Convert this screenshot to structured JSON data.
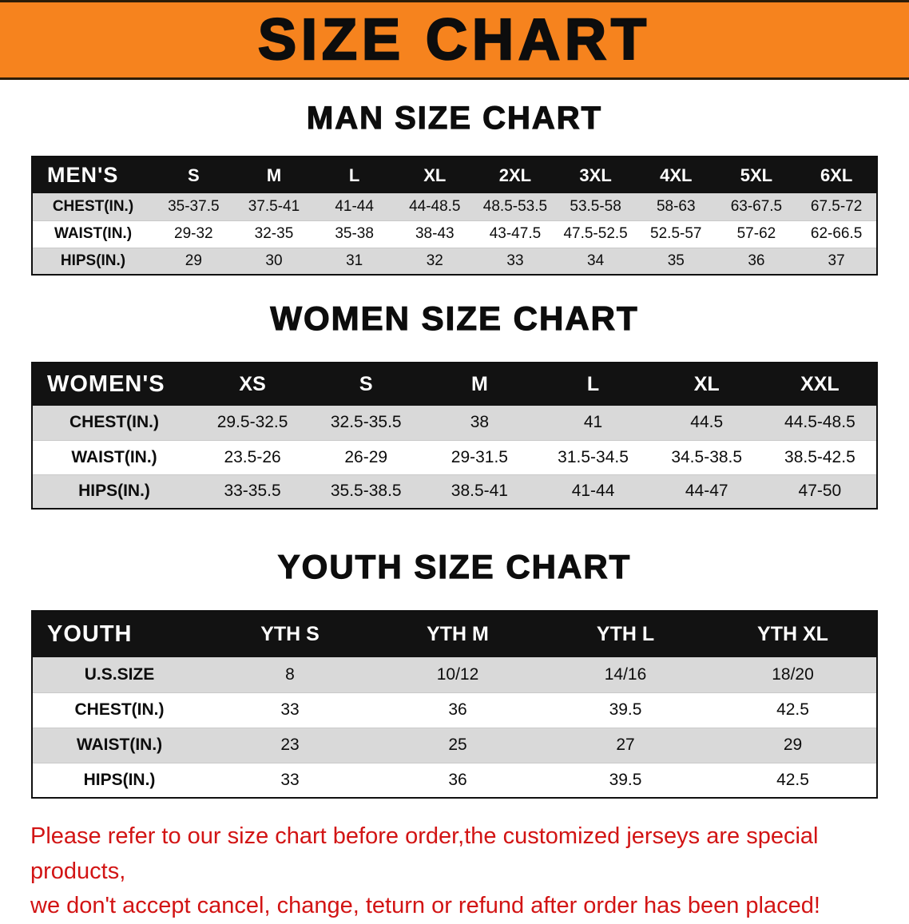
{
  "banner": {
    "title": "SIZE CHART"
  },
  "colors": {
    "banner_bg": "#f6831e",
    "table_header_bg": "#121212",
    "row_stripe": "#d9d9d9",
    "disclaimer_red": "#d21414",
    "text_black": "#0d0d0d"
  },
  "sections": [
    {
      "heading": "MAN SIZE CHART",
      "header_label": "MEN'S",
      "columns": [
        "S",
        "M",
        "L",
        "XL",
        "2XL",
        "3XL",
        "4XL",
        "5XL",
        "6XL"
      ],
      "rows": [
        {
          "label": "CHEST(IN.)",
          "values": [
            "35-37.5",
            "37.5-41",
            "41-44",
            "44-48.5",
            "48.5-53.5",
            "53.5-58",
            "58-63",
            "63-67.5",
            "67.5-72"
          ]
        },
        {
          "label": "WAIST(IN.)",
          "values": [
            "29-32",
            "32-35",
            "35-38",
            "38-43",
            "43-47.5",
            "47.5-52.5",
            "52.5-57",
            "57-62",
            "62-66.5"
          ]
        },
        {
          "label": "HIPS(IN.)",
          "values": [
            "29",
            "30",
            "31",
            "32",
            "33",
            "34",
            "35",
            "36",
            "37"
          ]
        }
      ]
    },
    {
      "heading": "WOMEN SIZE CHART",
      "header_label": "WOMEN'S",
      "columns": [
        "XS",
        "S",
        "M",
        "L",
        "XL",
        "XXL"
      ],
      "rows": [
        {
          "label": "CHEST(IN.)",
          "values": [
            "29.5-32.5",
            "32.5-35.5",
            "38",
            "41",
            "44.5",
            "44.5-48.5"
          ]
        },
        {
          "label": "WAIST(IN.)",
          "values": [
            "23.5-26",
            "26-29",
            "29-31.5",
            "31.5-34.5",
            "34.5-38.5",
            "38.5-42.5"
          ]
        },
        {
          "label": "HIPS(IN.)",
          "values": [
            "33-35.5",
            "35.5-38.5",
            "38.5-41",
            "41-44",
            "44-47",
            "47-50"
          ]
        }
      ]
    },
    {
      "heading": "YOUTH SIZE CHART",
      "header_label": "YOUTH",
      "columns": [
        "YTH S",
        "YTH M",
        "YTH L",
        "YTH XL"
      ],
      "rows": [
        {
          "label": "U.S.SIZE",
          "values": [
            "8",
            "10/12",
            "14/16",
            "18/20"
          ]
        },
        {
          "label": "CHEST(IN.)",
          "values": [
            "33",
            "36",
            "39.5",
            "42.5"
          ]
        },
        {
          "label": "WAIST(IN.)",
          "values": [
            "23",
            "25",
            "27",
            "29"
          ]
        },
        {
          "label": "HIPS(IN.)",
          "values": [
            "33",
            "36",
            "39.5",
            "42.5"
          ]
        }
      ]
    }
  ],
  "disclaimer": {
    "lines": [
      "Please refer to our size chart before order,the customized jerseys are special products,",
      "we don't accept cancel, change, teturn or refund after order has been placed!"
    ]
  }
}
